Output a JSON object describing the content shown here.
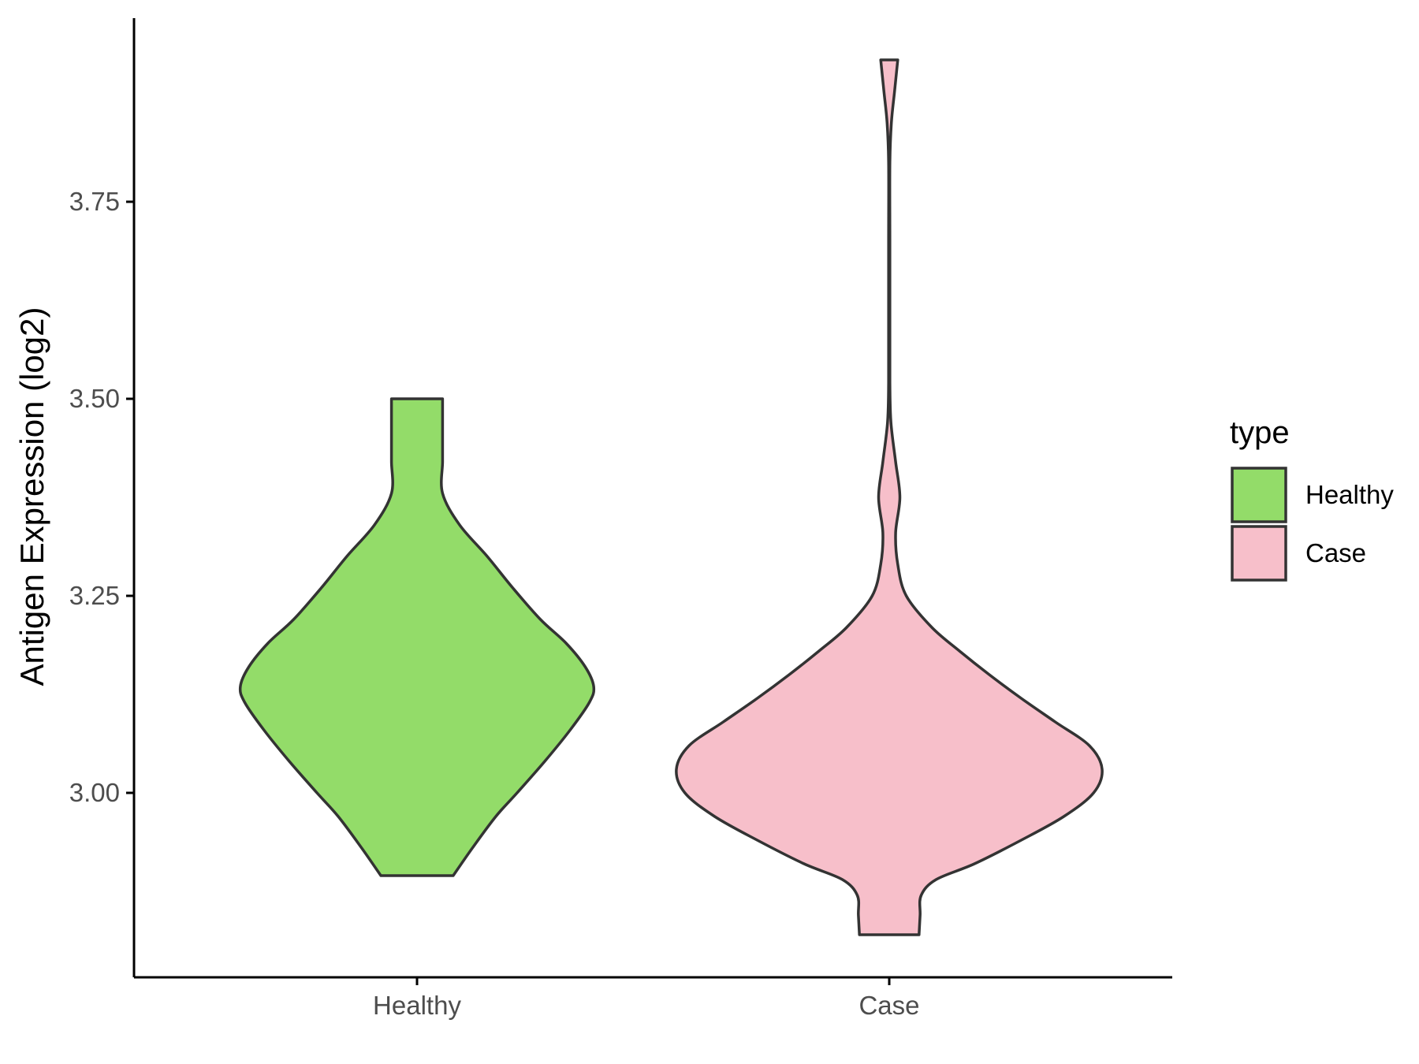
{
  "chart_data": {
    "type": "violin",
    "title": "",
    "xlabel": "",
    "ylabel": "Antigen Expression (log2)",
    "categories": [
      "Healthy",
      "Case"
    ],
    "ylim": [
      2.77,
      3.99
    ],
    "yticks": [
      3.0,
      3.25,
      3.5,
      3.75
    ],
    "ytick_labels": [
      "3.00",
      "3.25",
      "3.50",
      "3.75"
    ],
    "legend": {
      "title": "type",
      "position": "right",
      "entries": [
        {
          "label": "Healthy",
          "color": "#93dc69"
        },
        {
          "label": "Case",
          "color": "#f7bfca"
        }
      ]
    },
    "series": [
      {
        "name": "Healthy",
        "color": "#93dc69",
        "min": 2.895,
        "max": 3.5,
        "density_profile": [
          [
            2.895,
            0.17
          ],
          [
            2.93,
            0.26
          ],
          [
            2.97,
            0.37
          ],
          [
            3.0,
            0.47
          ],
          [
            3.04,
            0.6
          ],
          [
            3.08,
            0.72
          ],
          [
            3.115,
            0.81
          ],
          [
            3.135,
            0.83
          ],
          [
            3.16,
            0.79
          ],
          [
            3.19,
            0.7
          ],
          [
            3.22,
            0.58
          ],
          [
            3.26,
            0.45
          ],
          [
            3.3,
            0.33
          ],
          [
            3.34,
            0.2
          ],
          [
            3.38,
            0.12
          ],
          [
            3.42,
            0.12
          ],
          [
            3.45,
            0.12
          ],
          [
            3.47,
            0.12
          ],
          [
            3.5,
            0.12
          ]
        ]
      },
      {
        "name": "Case",
        "color": "#f7bfca",
        "min": 2.82,
        "max": 3.93,
        "density_profile": [
          [
            2.82,
            0.14
          ],
          [
            2.845,
            0.145
          ],
          [
            2.87,
            0.15
          ],
          [
            2.89,
            0.22
          ],
          [
            2.91,
            0.4
          ],
          [
            2.94,
            0.62
          ],
          [
            2.97,
            0.82
          ],
          [
            3.0,
            0.96
          ],
          [
            3.03,
            1.0
          ],
          [
            3.06,
            0.94
          ],
          [
            3.09,
            0.78
          ],
          [
            3.12,
            0.62
          ],
          [
            3.15,
            0.47
          ],
          [
            3.18,
            0.33
          ],
          [
            3.21,
            0.2
          ],
          [
            3.25,
            0.08
          ],
          [
            3.29,
            0.04
          ],
          [
            3.33,
            0.03
          ],
          [
            3.375,
            0.05
          ],
          [
            3.42,
            0.03
          ],
          [
            3.47,
            0.008
          ],
          [
            3.52,
            0.003
          ],
          [
            3.6,
            0.003
          ],
          [
            3.7,
            0.003
          ],
          [
            3.8,
            0.003
          ],
          [
            3.85,
            0.01
          ],
          [
            3.89,
            0.025
          ],
          [
            3.93,
            0.04
          ]
        ]
      }
    ]
  }
}
